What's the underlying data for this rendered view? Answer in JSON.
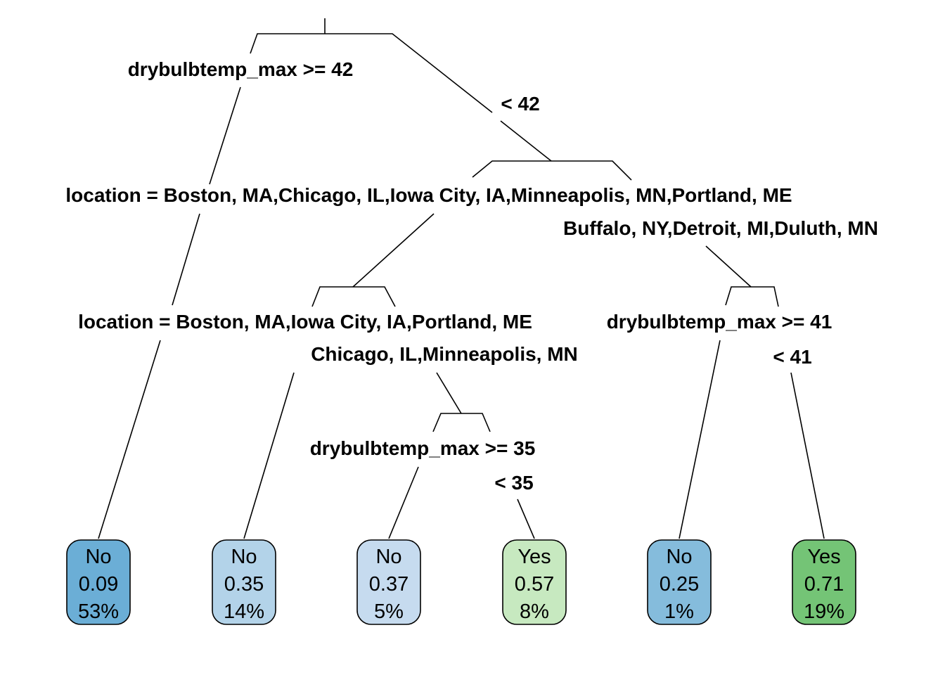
{
  "tree": {
    "splits": {
      "root_left": "drybulbtemp_max >= 42",
      "root_right": "< 42",
      "loc1_left": "location = Boston, MA,Chicago, IL,Iowa City, IA,Minneapolis, MN,Portland, ME",
      "loc1_right": "Buffalo, NY,Detroit, MI,Duluth, MN",
      "loc2_left": "location = Boston, MA,Iowa City, IA,Portland, ME",
      "loc2_right": "Chicago, IL,Minneapolis, MN",
      "temp41_left": "drybulbtemp_max >= 41",
      "temp41_right": "< 41",
      "temp35_left": "drybulbtemp_max >= 35",
      "temp35_right": "< 35"
    },
    "leaves": [
      {
        "class": "No",
        "prob": "0.09",
        "pct": "53%",
        "color": "#6baed6"
      },
      {
        "class": "No",
        "prob": "0.35",
        "pct": "14%",
        "color": "#b3d3e9"
      },
      {
        "class": "No",
        "prob": "0.37",
        "pct": "5%",
        "color": "#c6dbef"
      },
      {
        "class": "Yes",
        "prob": "0.57",
        "pct": "8%",
        "color": "#c7e9c0"
      },
      {
        "class": "No",
        "prob": "0.25",
        "pct": "1%",
        "color": "#85bcdc"
      },
      {
        "class": "Yes",
        "prob": "0.71",
        "pct": "19%",
        "color": "#74c476"
      }
    ]
  }
}
